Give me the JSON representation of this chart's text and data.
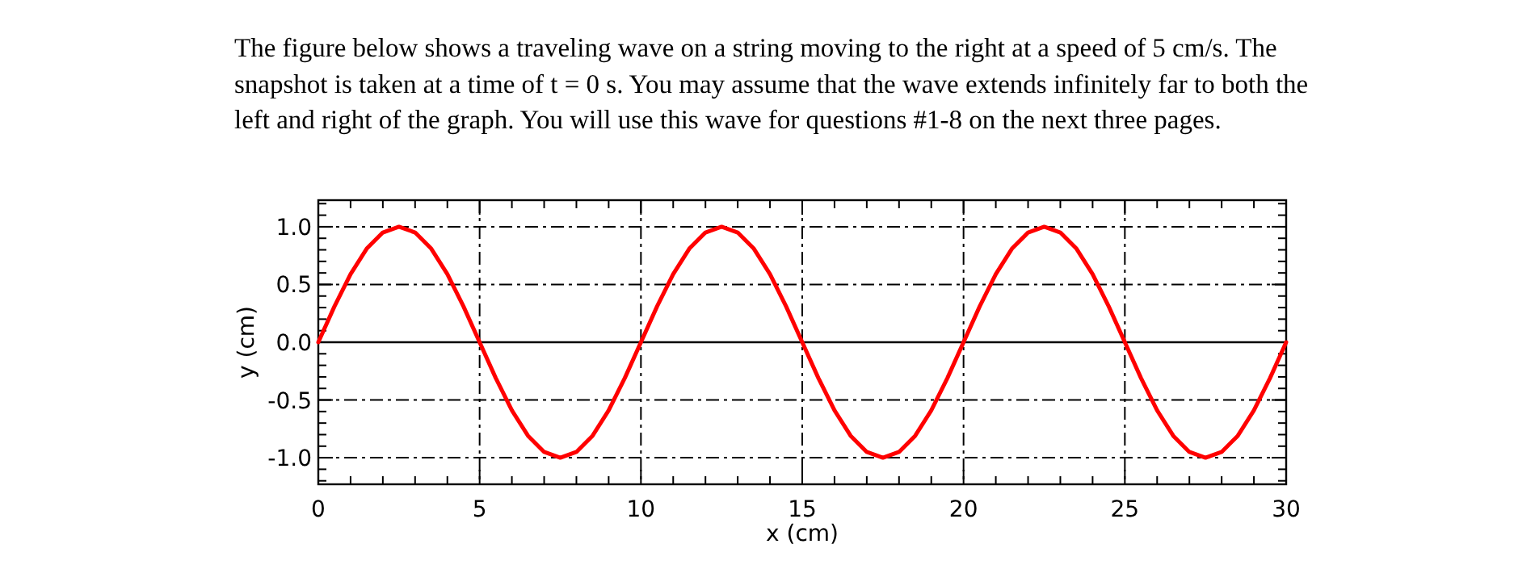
{
  "chart_data": {
    "type": "line",
    "title": "The figure below shows a traveling wave on a string moving to the right at a speed of 5 cm/s.  The snapshot is taken at a time of t = 0 s.  You may assume that the wave extends infinitely far to both the left and right of the graph.  You will use this wave for questions #1-8 on the next three pages.",
    "xlabel": "x (cm)",
    "ylabel": "y (cm)",
    "x": [
      0,
      0.5,
      1,
      1.5,
      2,
      2.5,
      3,
      3.5,
      4,
      4.5,
      5,
      5.5,
      6,
      6.5,
      7,
      7.5,
      8,
      8.5,
      9,
      9.5,
      10,
      10.5,
      11,
      11.5,
      12,
      12.5,
      13,
      13.5,
      14,
      14.5,
      15,
      15.5,
      16,
      16.5,
      17,
      17.5,
      18,
      18.5,
      19,
      19.5,
      20,
      20.5,
      21,
      21.5,
      22,
      22.5,
      23,
      23.5,
      24,
      24.5,
      25,
      25.5,
      26,
      26.5,
      27,
      27.5,
      28,
      28.5,
      29,
      29.5,
      30
    ],
    "series": [
      {
        "color": "#ff0000",
        "values": [
          0,
          0.31,
          0.59,
          0.81,
          0.95,
          1,
          0.95,
          0.81,
          0.59,
          0.31,
          0,
          -0.31,
          -0.59,
          -0.81,
          -0.95,
          -1,
          -0.95,
          -0.81,
          -0.59,
          -0.31,
          0,
          0.31,
          0.59,
          0.81,
          0.95,
          1,
          0.95,
          0.81,
          0.59,
          0.31,
          0,
          -0.31,
          -0.59,
          -0.81,
          -0.95,
          -1,
          -0.95,
          -0.81,
          -0.59,
          -0.31,
          0,
          0.31,
          0.59,
          0.81,
          0.95,
          1,
          0.95,
          0.81,
          0.59,
          0.31,
          0,
          -0.31,
          -0.59,
          -0.81,
          -0.95,
          -1,
          -0.95,
          -0.81,
          -0.59,
          -0.31,
          0
        ]
      }
    ],
    "xlim": [
      0,
      30
    ],
    "xticks": [
      0,
      {
        "value": 1,
        "label": null
      },
      {
        "value": 2,
        "label": null
      },
      {
        "value": 3,
        "label": null
      },
      {
        "value": 4,
        "label": null
      },
      5,
      {
        "value": 6,
        "label": null
      },
      {
        "value": 7,
        "label": null
      },
      {
        "value": 8,
        "label": null
      },
      {
        "value": 9,
        "label": null
      },
      10,
      {
        "value": 11,
        "label": null
      },
      {
        "value": 12,
        "label": null
      },
      {
        "value": 13,
        "label": null
      },
      {
        "value": 14,
        "label": null
      },
      15,
      {
        "value": 16,
        "label": null
      },
      {
        "value": 17,
        "label": null
      },
      {
        "value": 18,
        "label": null
      },
      {
        "value": 19,
        "label": null
      },
      20,
      {
        "value": 21,
        "label": null
      },
      {
        "value": 22,
        "label": null
      },
      {
        "value": 23,
        "label": null
      },
      {
        "value": 24,
        "label": null
      },
      25,
      {
        "value": 26,
        "label": null
      },
      {
        "value": 27,
        "label": null
      },
      {
        "value": 28,
        "label": null
      },
      {
        "value": 29,
        "label": null
      },
      30
    ],
    "ylim": [
      -1.23,
      1.23
    ],
    "yticks": [
      {
        "value": -1.2,
        "label": null
      },
      {
        "value": -1.1,
        "label": null
      },
      {
        "value": -1,
        "label": "-1.0"
      },
      {
        "value": -0.9,
        "label": null
      },
      {
        "value": -0.8,
        "label": null
      },
      {
        "value": -0.7,
        "label": null
      },
      {
        "value": -0.6,
        "label": null
      },
      -0.5,
      {
        "value": -0.4,
        "label": null
      },
      {
        "value": -0.3,
        "label": null
      },
      {
        "value": -0.2,
        "label": null
      },
      {
        "value": -0.1,
        "label": null
      },
      {
        "value": 0,
        "label": "0.0"
      },
      {
        "value": 0.1,
        "label": null
      },
      {
        "value": 0.2,
        "label": null
      },
      {
        "value": 0.3,
        "label": null
      },
      {
        "value": 0.4,
        "label": null
      },
      0.5,
      {
        "value": 0.6,
        "label": null
      },
      {
        "value": 0.7,
        "label": null
      },
      {
        "value": 0.8,
        "label": null
      },
      {
        "value": 0.9,
        "label": null
      },
      {
        "value": 1,
        "label": "1.0"
      },
      {
        "value": 1.1,
        "label": null
      },
      {
        "value": 1.2,
        "label": null
      }
    ],
    "grid": true,
    "line_style": "solid",
    "marker": "none",
    "ref_lines": [
      {
        "axis": "y",
        "value": 0,
        "label": null,
        "color": "#000000",
        "line_style": "solid"
      }
    ]
  }
}
